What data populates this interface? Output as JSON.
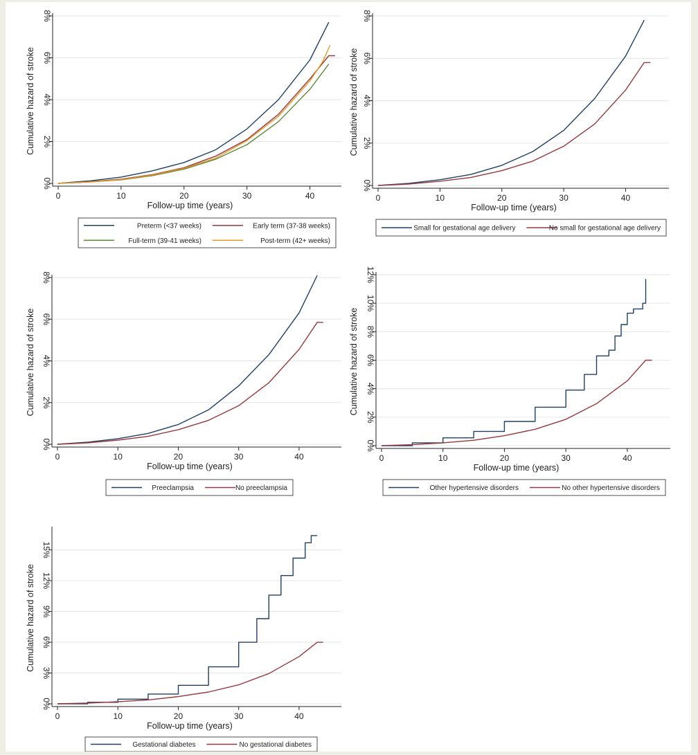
{
  "chart_data": [
    {
      "type": "line",
      "xlabel": "Follow-up time (years)",
      "ylabel": "Cumulative hazard of stroke",
      "xlim": [
        0,
        45
      ],
      "ylim": [
        0,
        8
      ],
      "xticks": [
        0,
        10,
        20,
        30,
        40
      ],
      "xtick_labels": [
        "0",
        "10",
        "20",
        "30",
        "40"
      ],
      "yticks": [
        0,
        2,
        4,
        6,
        8
      ],
      "ytick_labels": [
        "0%",
        "2%",
        "4%",
        "6%",
        "8%"
      ],
      "grid": true,
      "legend_position": "bottom",
      "legend_columns": 2,
      "series": [
        {
          "name": "Preterm (<37 weeks)",
          "color": "#1f3f64",
          "x": [
            0,
            5,
            10,
            15,
            20,
            25,
            30,
            35,
            40,
            43
          ],
          "y": [
            0.0,
            0.12,
            0.3,
            0.6,
            1.0,
            1.6,
            2.6,
            4.0,
            5.9,
            7.7
          ]
        },
        {
          "name": "Early term (37-38 weeks)",
          "color": "#96383d",
          "x": [
            0,
            5,
            10,
            15,
            20,
            25,
            30,
            35,
            40,
            43,
            44
          ],
          "y": [
            0.0,
            0.08,
            0.2,
            0.42,
            0.75,
            1.3,
            2.1,
            3.3,
            5.0,
            6.1,
            6.1
          ]
        },
        {
          "name": "Full-term (39-41 weeks)",
          "color": "#5e8a3a",
          "x": [
            0,
            5,
            10,
            15,
            20,
            25,
            30,
            35,
            40,
            43
          ],
          "y": [
            0.0,
            0.07,
            0.17,
            0.37,
            0.68,
            1.15,
            1.85,
            2.95,
            4.5,
            5.7
          ]
        },
        {
          "name": "Post-term (42+ weeks)",
          "color": "#e69823",
          "x": [
            0,
            5,
            10,
            15,
            20,
            25,
            30,
            35,
            40,
            42,
            43.2
          ],
          "y": [
            0.0,
            0.07,
            0.18,
            0.4,
            0.72,
            1.2,
            2.05,
            3.2,
            4.9,
            5.8,
            6.6
          ]
        }
      ]
    },
    {
      "type": "line",
      "xlabel": "Follow-up time (years)",
      "ylabel": "Cumulative hazard of stroke",
      "xlim": [
        0,
        47
      ],
      "ylim": [
        0,
        8
      ],
      "xticks": [
        0,
        10,
        20,
        30,
        40
      ],
      "xtick_labels": [
        "0",
        "10",
        "20",
        "30",
        "40"
      ],
      "yticks": [
        0,
        2,
        4,
        6,
        8
      ],
      "ytick_labels": [
        "0%",
        "2%",
        "4%",
        "6%",
        "8%"
      ],
      "grid": true,
      "legend_position": "bottom",
      "legend_columns": 2,
      "series": [
        {
          "name": "Small for gestational age delivery",
          "color": "#1f3f64",
          "x": [
            0,
            5,
            10,
            15,
            20,
            25,
            30,
            35,
            40,
            43
          ],
          "y": [
            0.0,
            0.1,
            0.27,
            0.52,
            0.95,
            1.6,
            2.6,
            4.1,
            6.1,
            7.8
          ]
        },
        {
          "name": "No small for gestational age delivery",
          "color": "#96383d",
          "x": [
            0,
            5,
            10,
            15,
            20,
            25,
            30,
            35,
            40,
            43,
            44
          ],
          "y": [
            0.0,
            0.07,
            0.2,
            0.38,
            0.7,
            1.15,
            1.85,
            2.9,
            4.5,
            5.8,
            5.8
          ]
        }
      ]
    },
    {
      "type": "line",
      "xlabel": "Follow-up time (years)",
      "ylabel": "Cumulative hazard of stroke",
      "xlim": [
        0,
        47
      ],
      "ylim": [
        0,
        8
      ],
      "xticks": [
        0,
        10,
        20,
        30,
        40
      ],
      "xtick_labels": [
        "0",
        "10",
        "20",
        "30",
        "40"
      ],
      "yticks": [
        0,
        2,
        4,
        6,
        8
      ],
      "ytick_labels": [
        "0%",
        "2%",
        "4%",
        "6%",
        "8%"
      ],
      "grid": true,
      "legend_position": "bottom",
      "legend_columns": 2,
      "series": [
        {
          "name": "Preeclampsia",
          "color": "#1f3f64",
          "x": [
            0,
            5,
            10,
            15,
            20,
            25,
            30,
            35,
            40,
            43
          ],
          "y": [
            0.0,
            0.1,
            0.27,
            0.52,
            0.95,
            1.65,
            2.8,
            4.3,
            6.3,
            8.1
          ]
        },
        {
          "name": "No preeclampsia",
          "color": "#96383d",
          "x": [
            0,
            5,
            10,
            15,
            20,
            25,
            30,
            35,
            40,
            43,
            44
          ],
          "y": [
            0.0,
            0.07,
            0.2,
            0.38,
            0.7,
            1.15,
            1.85,
            2.95,
            4.55,
            5.85,
            5.85
          ]
        }
      ]
    },
    {
      "type": "line",
      "xlabel": "Follow-up time (years)",
      "ylabel": "Cumulative hazard of stroke",
      "xlim": [
        0,
        47
      ],
      "ylim": [
        0,
        12
      ],
      "xticks": [
        0,
        10,
        20,
        30,
        40
      ],
      "xtick_labels": [
        "0",
        "10",
        "20",
        "30",
        "40"
      ],
      "yticks": [
        0,
        2,
        4,
        6,
        8,
        10,
        12
      ],
      "ytick_labels": [
        "0%",
        "2%",
        "4%",
        "6%",
        "8%",
        "10%",
        "12%"
      ],
      "grid": true,
      "legend_position": "bottom",
      "legend_columns": 2,
      "series": [
        {
          "name": "Other hypertensive disorders",
          "color": "#1f3f64",
          "step": true,
          "x": [
            0,
            5,
            10,
            15,
            20,
            25,
            30,
            33,
            35,
            37,
            38,
            39,
            40,
            41,
            42,
            42.5,
            43
          ],
          "y": [
            0.0,
            0.2,
            0.55,
            1.0,
            1.7,
            2.7,
            3.9,
            5.0,
            6.3,
            6.7,
            7.7,
            8.5,
            9.3,
            9.6,
            9.6,
            10.0,
            11.7
          ]
        },
        {
          "name": "No other hypertensive disorders",
          "color": "#96383d",
          "x": [
            0,
            5,
            10,
            15,
            20,
            25,
            30,
            35,
            40,
            43,
            44
          ],
          "y": [
            0.0,
            0.07,
            0.2,
            0.38,
            0.7,
            1.15,
            1.85,
            2.95,
            4.55,
            6.0,
            6.0
          ]
        }
      ]
    },
    {
      "type": "line",
      "xlabel": "Follow-up time (years)",
      "ylabel": "Cumulative hazard of stroke",
      "xlim": [
        0,
        47
      ],
      "ylim": [
        0,
        17
      ],
      "xticks": [
        0,
        10,
        20,
        30,
        40
      ],
      "xtick_labels": [
        "0",
        "10",
        "20",
        "30",
        "40"
      ],
      "yticks": [
        0,
        3,
        6,
        9,
        12,
        15
      ],
      "ytick_labels": [
        "0%",
        "3%",
        "6%",
        "9%",
        "12%",
        "15%"
      ],
      "grid": true,
      "legend_position": "bottom",
      "legend_columns": 2,
      "series": [
        {
          "name": "Gestational diabetes",
          "color": "#1f3f64",
          "step": true,
          "x": [
            0,
            5,
            10,
            15,
            20,
            25,
            30,
            33,
            35,
            37,
            39,
            41,
            42,
            43
          ],
          "y": [
            0.0,
            0.15,
            0.45,
            0.95,
            1.8,
            3.6,
            6.0,
            8.3,
            10.6,
            12.5,
            14.2,
            15.7,
            16.4,
            16.4
          ]
        },
        {
          "name": "No gestational diabetes",
          "color": "#96383d",
          "x": [
            0,
            5,
            10,
            15,
            20,
            25,
            30,
            35,
            40,
            43,
            44
          ],
          "y": [
            0.0,
            0.07,
            0.2,
            0.38,
            0.7,
            1.15,
            1.85,
            2.95,
            4.6,
            6.0,
            6.0
          ]
        }
      ]
    }
  ]
}
